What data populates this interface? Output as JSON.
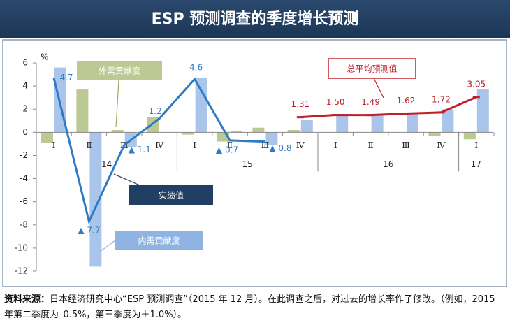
{
  "chart_data": {
    "type": "bar",
    "title": "ESP 预测调查的季度增长预测",
    "y_unit": "%",
    "categories": [
      "Ⅰ",
      "Ⅱ",
      "Ⅲ",
      "Ⅳ",
      "Ⅰ",
      "Ⅱ",
      "Ⅲ",
      "Ⅳ",
      "Ⅰ",
      "Ⅱ",
      "Ⅲ",
      "Ⅳ",
      "Ⅰ"
    ],
    "groups": [
      "14",
      "15",
      "16",
      "17"
    ],
    "ylim": [
      -12,
      6
    ],
    "yticks": [
      -12,
      -10,
      -8,
      -6,
      -4,
      -2,
      0,
      2,
      4,
      6
    ],
    "series": [
      {
        "name": "外需贡献度",
        "type": "bar",
        "color": "#bcc993",
        "values": [
          -0.9,
          3.7,
          0.2,
          1.3,
          -0.2,
          -0.8,
          0.4,
          0.2,
          0.0,
          0.0,
          0.0,
          -0.3,
          -0.6
        ]
      },
      {
        "name": "内需贡献度",
        "type": "bar",
        "color": "#a9c5ea",
        "values": [
          5.6,
          -11.6,
          -1.3,
          0.0,
          4.7,
          0.1,
          -1.1,
          1.1,
          1.5,
          1.5,
          1.6,
          2.0,
          3.7
        ]
      },
      {
        "name": "实绩值",
        "type": "line",
        "color": "#2e7bc4",
        "values": [
          4.7,
          -7.7,
          -1.1,
          1.2,
          4.6,
          -0.7,
          -0.8,
          null,
          null,
          null,
          null,
          null,
          null
        ],
        "value_labels": [
          "4.7",
          "▲ 7.7",
          "▲ 1.1",
          "1.2",
          "4.6",
          "▲ 0.7",
          "▲ 0.8",
          null,
          null,
          null,
          null,
          null,
          null
        ]
      },
      {
        "name": "总平均预测值",
        "type": "line",
        "color": "#c0202a",
        "values": [
          null,
          null,
          null,
          null,
          null,
          null,
          null,
          1.31,
          1.5,
          1.49,
          1.62,
          1.72,
          3.05
        ],
        "value_labels": [
          null,
          null,
          null,
          null,
          null,
          null,
          null,
          "1.31",
          "1.50",
          "1.49",
          "1.62",
          "1.72",
          "3.05"
        ]
      }
    ]
  },
  "source": {
    "label": "资料来源：",
    "text": "日本经济研究中心“ESP 预测调查”（2015 年 12 月）。在此调查之后，对过去的增长率作了修改。（例如，2015 年第二季度为–0.5%，第三季度为＋1.0%）。"
  }
}
